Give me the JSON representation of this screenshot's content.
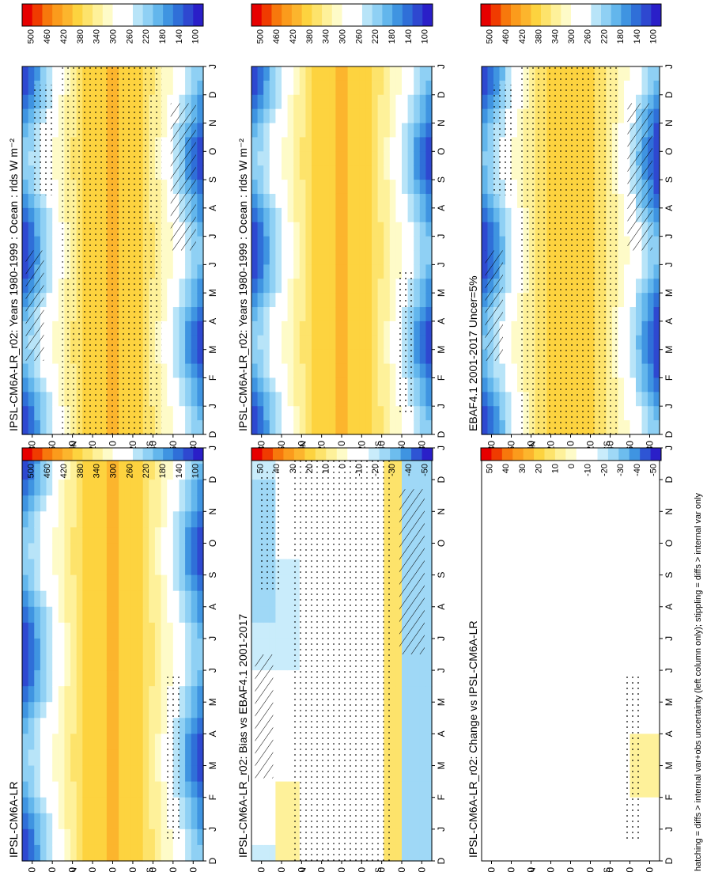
{
  "figure": {
    "footnote": "hatching = diffs > internal var+obs uncertainty (left column only); stippling = diffs > internal var only",
    "months": [
      "D",
      "J",
      "F",
      "M",
      "A",
      "M",
      "J",
      "J",
      "A",
      "S",
      "O",
      "N",
      "D",
      "J"
    ],
    "lat_ticks": [
      "80",
      "60",
      "40",
      "20",
      "0",
      "20",
      "40",
      "60",
      "80"
    ],
    "lat_n_label": "°N",
    "lat_s_label": "°S"
  },
  "colors": {
    "abs_scale": [
      "#e60000",
      "#f03b00",
      "#f7780c",
      "#fb9b1c",
      "#fcb52d",
      "#fdd33f",
      "#fde36b",
      "#fef19a",
      "#fefbc8",
      "#ffffff",
      "#ffffff",
      "#b8e4f8",
      "#8fd0f4",
      "#63b6ec",
      "#3f94e1",
      "#2f6fd8",
      "#2e48d0",
      "#2a1fc8"
    ],
    "diff_scale": [
      "#e60000",
      "#f03b00",
      "#f7780c",
      "#fb9b1c",
      "#fcb52d",
      "#fdd33f",
      "#fde36b",
      "#fef19a",
      "#fefbc8",
      "#ffffff",
      "#ffffff",
      "#c9ecfb",
      "#9fd8f6",
      "#6dbdee",
      "#3f94e1",
      "#2e55d4",
      "#2a1fc8"
    ]
  },
  "chart_data": [
    {
      "type": "heatmap",
      "title": "IPSL-CM6A-LR_r02: Years 1980-1999 : Ocean : rlds W m⁻²",
      "x": [
        "D",
        "J",
        "F",
        "M",
        "A",
        "M",
        "J",
        "J",
        "A",
        "S",
        "O",
        "N",
        "D",
        "J"
      ],
      "y": [
        "80°N",
        "60°N",
        "40°N",
        "20°N",
        "0",
        "20°S",
        "40°S",
        "60°S",
        "80°S"
      ],
      "colorbar": [
        "500",
        "460",
        "420",
        "380",
        "340",
        "300",
        "260",
        "220",
        "180",
        "140",
        "100"
      ],
      "mode": "model",
      "stipple": "dense",
      "hatch": true
    },
    {
      "type": "heatmap",
      "title": "IPSL-CM6A-LR_r02: Years 1980-1999 : Ocean : rlds W m⁻²",
      "x": [
        "D",
        "J",
        "F",
        "M",
        "A",
        "M",
        "J",
        "J",
        "A",
        "S",
        "O",
        "N",
        "D",
        "J"
      ],
      "y": [
        "80°N",
        "60°N",
        "40°N",
        "20°N",
        "0",
        "20°S",
        "40°S",
        "60°S",
        "80°S"
      ],
      "colorbar": [
        "500",
        "460",
        "420",
        "380",
        "340",
        "300",
        "260",
        "220",
        "180",
        "140",
        "100"
      ],
      "mode": "model",
      "stipple": "sparse",
      "hatch": false
    },
    {
      "type": "heatmap",
      "title": "EBAF4.1 2001-2017 Uncer=5%",
      "x": [
        "D",
        "J",
        "F",
        "M",
        "A",
        "M",
        "J",
        "J",
        "A",
        "S",
        "O",
        "N",
        "D",
        "J"
      ],
      "y": [
        "80°N",
        "60°N",
        "40°N",
        "20°N",
        "0",
        "20°S",
        "40°S",
        "60°S",
        "80°S"
      ],
      "colorbar": [
        "500",
        "460",
        "420",
        "380",
        "340",
        "300",
        "260",
        "220",
        "180",
        "140",
        "100"
      ],
      "mode": "obs",
      "stipple": "dense",
      "hatch": true
    },
    {
      "type": "heatmap",
      "title": "IPSL-CM6A-LR",
      "x": [
        "D",
        "J",
        "F",
        "M",
        "A",
        "M",
        "J",
        "J",
        "A",
        "S",
        "O",
        "N",
        "D",
        "J"
      ],
      "y": [
        "80°N",
        "60°N",
        "40°N",
        "20°N",
        "0",
        "20°S",
        "40°S",
        "60°S",
        "80°S"
      ],
      "colorbar": [
        "500",
        "460",
        "420",
        "380",
        "340",
        "300",
        "260",
        "220",
        "180",
        "140",
        "100"
      ],
      "mode": "model",
      "stipple": "sparse",
      "hatch": false
    },
    {
      "type": "heatmap",
      "title": "IPSL-CM6A-LR_r02: Bias vs EBAF4.1 2001-2017",
      "x": [
        "D",
        "J",
        "F",
        "M",
        "A",
        "M",
        "J",
        "J",
        "A",
        "S",
        "O",
        "N",
        "D",
        "J"
      ],
      "y": [
        "80°N",
        "60°N",
        "40°N",
        "20°N",
        "0",
        "20°S",
        "40°S",
        "60°S",
        "80°S"
      ],
      "colorbar": [
        "50",
        "40",
        "30",
        "20",
        "10",
        "0",
        "-10",
        "-20",
        "-30",
        "-40",
        "-50"
      ],
      "mode": "bias",
      "stipple": "dense",
      "hatch": true
    },
    {
      "type": "heatmap",
      "title": "IPSL-CM6A-LR_r02: Change vs IPSL-CM6A-LR",
      "x": [
        "D",
        "J",
        "F",
        "M",
        "A",
        "M",
        "J",
        "J",
        "A",
        "S",
        "O",
        "N",
        "D",
        "J"
      ],
      "y": [
        "80°N",
        "60°N",
        "40°N",
        "20°N",
        "0",
        "20°S",
        "40°S",
        "60°S",
        "80°S"
      ],
      "colorbar": [
        "50",
        "40",
        "30",
        "20",
        "10",
        "0",
        "-10",
        "-20",
        "-30",
        "-40",
        "-50"
      ],
      "mode": "change",
      "stipple": "sparse",
      "hatch": false
    }
  ]
}
